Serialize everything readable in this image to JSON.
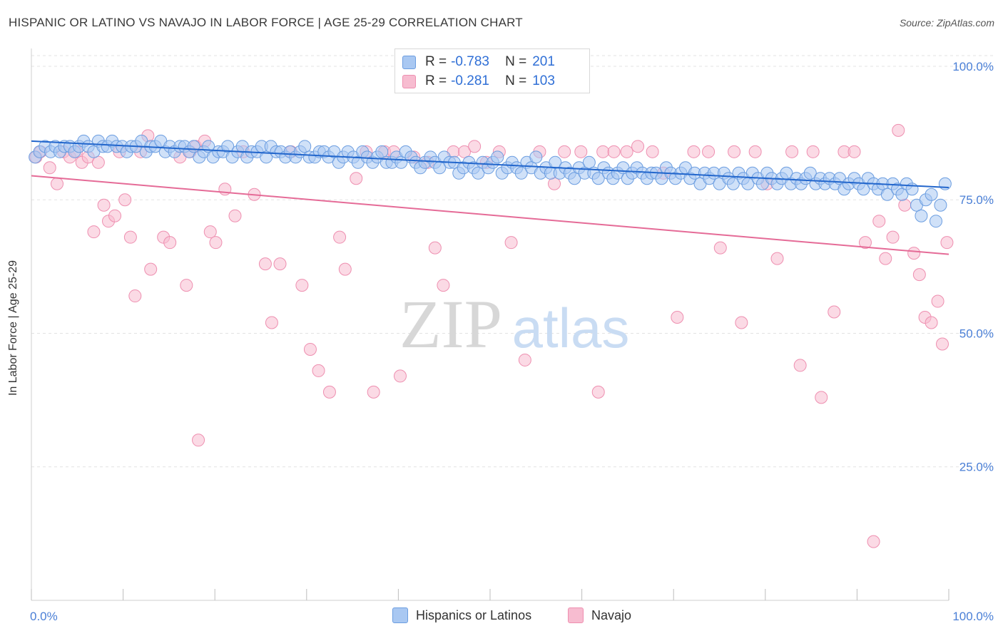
{
  "title": "HISPANIC OR LATINO VS NAVAJO IN LABOR FORCE | AGE 25-29 CORRELATION CHART",
  "source": "Source: ZipAtlas.com",
  "watermark": {
    "zip": "ZIP",
    "atlas": "atlas"
  },
  "legend": {
    "rows": [
      {
        "r_label": "R =",
        "r_value": "-0.783",
        "n_label": "N =",
        "n_value": "201"
      },
      {
        "r_label": "R =",
        "r_value": "-0.281",
        "n_label": "N =",
        "n_value": "103"
      }
    ]
  },
  "chart_data": {
    "type": "scatter",
    "title": "HISPANIC OR LATINO VS NAVAJO IN LABOR FORCE | AGE 25-29 CORRELATION CHART",
    "xlabel": "",
    "ylabel": "In Labor Force | Age 25-29",
    "xlim": [
      0,
      100
    ],
    "ylim": [
      0,
      102
    ],
    "x_tick_labels": [
      "0.0%",
      "100.0%"
    ],
    "y_ticks": [
      25,
      50,
      75,
      100
    ],
    "y_tick_labels": [
      "25.0%",
      "50.0%",
      "75.0%",
      "100.0%"
    ],
    "grid": true,
    "colors": {
      "blue_fill": "#a9c8f2",
      "blue_stroke": "#6b9de0",
      "blue_line": "#2266cc",
      "pink_fill": "#f7bcd0",
      "pink_stroke": "#ee8fb0",
      "pink_line": "#e56b97",
      "tick_text": "#4a7fd6"
    },
    "series": [
      {
        "name": "Hispanics or Latinos",
        "r": -0.783,
        "n": 201,
        "trend": {
          "x": [
            0,
            100
          ],
          "y": [
            86.0,
            77.3
          ]
        },
        "points": [
          [
            0.4,
            83
          ],
          [
            0.9,
            84
          ],
          [
            1.5,
            85
          ],
          [
            2.1,
            84
          ],
          [
            2.6,
            85
          ],
          [
            3.1,
            84
          ],
          [
            3.6,
            85
          ],
          [
            4.2,
            85
          ],
          [
            4.7,
            84
          ],
          [
            5.2,
            85
          ],
          [
            5.7,
            86
          ],
          [
            6.2,
            85
          ],
          [
            6.8,
            84
          ],
          [
            7.3,
            86
          ],
          [
            7.8,
            85
          ],
          [
            8.3,
            85
          ],
          [
            8.8,
            86
          ],
          [
            9.3,
            85
          ],
          [
            9.9,
            85
          ],
          [
            10.4,
            84
          ],
          [
            10.9,
            85
          ],
          [
            11.4,
            85
          ],
          [
            12,
            86
          ],
          [
            12.5,
            84
          ],
          [
            13,
            85
          ],
          [
            13.5,
            85
          ],
          [
            14.1,
            86
          ],
          [
            14.6,
            84
          ],
          [
            15.1,
            85
          ],
          [
            15.6,
            84
          ],
          [
            16.2,
            85
          ],
          [
            16.7,
            85
          ],
          [
            17.2,
            84
          ],
          [
            17.7,
            85
          ],
          [
            18.3,
            83
          ],
          [
            18.8,
            84
          ],
          [
            19.3,
            85
          ],
          [
            19.8,
            83
          ],
          [
            20.4,
            84
          ],
          [
            20.9,
            84
          ],
          [
            21.4,
            85
          ],
          [
            21.9,
            83
          ],
          [
            22.5,
            84
          ],
          [
            23,
            85
          ],
          [
            23.5,
            83
          ],
          [
            24,
            84
          ],
          [
            24.6,
            84
          ],
          [
            25.1,
            85
          ],
          [
            25.6,
            83
          ],
          [
            26.1,
            85
          ],
          [
            26.7,
            84
          ],
          [
            27.2,
            84
          ],
          [
            27.7,
            83
          ],
          [
            28.2,
            84
          ],
          [
            28.8,
            83
          ],
          [
            29.3,
            84
          ],
          [
            29.8,
            85
          ],
          [
            30.3,
            83
          ],
          [
            30.9,
            83
          ],
          [
            31.4,
            84
          ],
          [
            31.9,
            84
          ],
          [
            32.4,
            83
          ],
          [
            33,
            84
          ],
          [
            33.5,
            82
          ],
          [
            34,
            83
          ],
          [
            34.5,
            84
          ],
          [
            35.1,
            83
          ],
          [
            35.6,
            82
          ],
          [
            36.1,
            84
          ],
          [
            36.6,
            83
          ],
          [
            37.2,
            82
          ],
          [
            37.7,
            83
          ],
          [
            38.2,
            84
          ],
          [
            38.7,
            82
          ],
          [
            39.3,
            82
          ],
          [
            39.8,
            83
          ],
          [
            40.3,
            82
          ],
          [
            40.8,
            84
          ],
          [
            41.4,
            83
          ],
          [
            41.9,
            82
          ],
          [
            42.4,
            81
          ],
          [
            42.9,
            82
          ],
          [
            43.5,
            83
          ],
          [
            44,
            82
          ],
          [
            44.5,
            81
          ],
          [
            45,
            83
          ],
          [
            45.6,
            82
          ],
          [
            46.1,
            82
          ],
          [
            46.6,
            80
          ],
          [
            47.1,
            81
          ],
          [
            47.7,
            82
          ],
          [
            48.2,
            81
          ],
          [
            48.7,
            80
          ],
          [
            49.2,
            82
          ],
          [
            49.8,
            81
          ],
          [
            50.3,
            82
          ],
          [
            50.8,
            83
          ],
          [
            51.3,
            80
          ],
          [
            51.9,
            81
          ],
          [
            52.4,
            82
          ],
          [
            52.9,
            81
          ],
          [
            53.4,
            80
          ],
          [
            54,
            82
          ],
          [
            54.5,
            81
          ],
          [
            55,
            83
          ],
          [
            55.5,
            80
          ],
          [
            56.1,
            81
          ],
          [
            56.6,
            80
          ],
          [
            57.1,
            82
          ],
          [
            57.6,
            80
          ],
          [
            58.2,
            81
          ],
          [
            58.7,
            80
          ],
          [
            59.2,
            79
          ],
          [
            59.7,
            81
          ],
          [
            60.3,
            80
          ],
          [
            60.8,
            82
          ],
          [
            61.3,
            80
          ],
          [
            61.8,
            79
          ],
          [
            62.4,
            81
          ],
          [
            62.9,
            80
          ],
          [
            63.4,
            79
          ],
          [
            63.9,
            80
          ],
          [
            64.5,
            81
          ],
          [
            65,
            79
          ],
          [
            65.5,
            80
          ],
          [
            66,
            81
          ],
          [
            66.6,
            80
          ],
          [
            67.1,
            79
          ],
          [
            67.6,
            80
          ],
          [
            68.1,
            80
          ],
          [
            68.7,
            79
          ],
          [
            69.2,
            81
          ],
          [
            69.7,
            80
          ],
          [
            70.2,
            79
          ],
          [
            70.8,
            80
          ],
          [
            71.3,
            81
          ],
          [
            71.8,
            79
          ],
          [
            72.3,
            80
          ],
          [
            72.9,
            78
          ],
          [
            73.4,
            80
          ],
          [
            73.9,
            79
          ],
          [
            74.4,
            80
          ],
          [
            75,
            78
          ],
          [
            75.5,
            80
          ],
          [
            76,
            79
          ],
          [
            76.5,
            78
          ],
          [
            77.1,
            80
          ],
          [
            77.6,
            79
          ],
          [
            78.1,
            78
          ],
          [
            78.6,
            80
          ],
          [
            79.2,
            79
          ],
          [
            79.7,
            78
          ],
          [
            80.2,
            80
          ],
          [
            80.7,
            79
          ],
          [
            81.3,
            78
          ],
          [
            81.8,
            79
          ],
          [
            82.3,
            80
          ],
          [
            82.8,
            78
          ],
          [
            83.4,
            79
          ],
          [
            83.9,
            78
          ],
          [
            84.4,
            79
          ],
          [
            84.9,
            80
          ],
          [
            85.5,
            78
          ],
          [
            86,
            79
          ],
          [
            86.5,
            78
          ],
          [
            87,
            79
          ],
          [
            87.6,
            78
          ],
          [
            88.1,
            79
          ],
          [
            88.6,
            77
          ],
          [
            89.1,
            78
          ],
          [
            89.7,
            79
          ],
          [
            90.2,
            78
          ],
          [
            90.7,
            77
          ],
          [
            91.2,
            79
          ],
          [
            91.8,
            78
          ],
          [
            92.3,
            77
          ],
          [
            92.8,
            78
          ],
          [
            93.3,
            76
          ],
          [
            93.9,
            78
          ],
          [
            94.4,
            77
          ],
          [
            94.9,
            76
          ],
          [
            95.4,
            78
          ],
          [
            96,
            77
          ],
          [
            96.5,
            74
          ],
          [
            97,
            72
          ],
          [
            97.5,
            75
          ],
          [
            98.1,
            76
          ],
          [
            98.6,
            71
          ],
          [
            99.1,
            74
          ],
          [
            99.6,
            78
          ]
        ]
      },
      {
        "name": "Navajo",
        "r": -0.281,
        "n": 103,
        "trend": {
          "x": [
            0,
            100
          ],
          "y": [
            79.5,
            64.8
          ]
        },
        "points": [
          [
            0.5,
            83
          ],
          [
            1,
            84
          ],
          [
            2,
            81
          ],
          [
            2.8,
            78
          ],
          [
            3.5,
            84
          ],
          [
            4.2,
            83
          ],
          [
            4.9,
            84
          ],
          [
            5.5,
            82
          ],
          [
            6.2,
            83
          ],
          [
            6.8,
            69
          ],
          [
            7.3,
            82
          ],
          [
            7.9,
            74
          ],
          [
            8.4,
            71
          ],
          [
            9.1,
            72
          ],
          [
            9.6,
            84
          ],
          [
            10.2,
            75
          ],
          [
            10.8,
            68
          ],
          [
            11.3,
            57
          ],
          [
            11.9,
            84
          ],
          [
            12.7,
            87
          ],
          [
            13,
            62
          ],
          [
            14.4,
            68
          ],
          [
            15.1,
            67
          ],
          [
            16.2,
            83
          ],
          [
            16.9,
            59
          ],
          [
            17.3,
            84
          ],
          [
            17.9,
            85
          ],
          [
            18.2,
            30
          ],
          [
            18.9,
            86
          ],
          [
            19.5,
            69
          ],
          [
            20.1,
            67
          ],
          [
            21.1,
            77
          ],
          [
            22.2,
            72
          ],
          [
            23.1,
            84
          ],
          [
            24.3,
            76
          ],
          [
            25.5,
            63
          ],
          [
            26.2,
            52
          ],
          [
            27.1,
            63
          ],
          [
            28.3,
            84
          ],
          [
            29.5,
            59
          ],
          [
            30.4,
            47
          ],
          [
            31.3,
            43
          ],
          [
            32.5,
            39
          ],
          [
            33.6,
            68
          ],
          [
            34.2,
            62
          ],
          [
            35.4,
            79
          ],
          [
            36.5,
            84
          ],
          [
            37.3,
            39
          ],
          [
            38.5,
            84
          ],
          [
            39.5,
            84
          ],
          [
            40.2,
            42
          ],
          [
            41.7,
            83
          ],
          [
            43.2,
            82
          ],
          [
            44,
            66
          ],
          [
            44.9,
            59
          ],
          [
            46,
            84
          ],
          [
            47.2,
            84
          ],
          [
            48.3,
            85
          ],
          [
            49.6,
            82
          ],
          [
            51,
            84
          ],
          [
            52.3,
            67
          ],
          [
            53.8,
            45
          ],
          [
            55.4,
            84
          ],
          [
            57,
            78
          ],
          [
            58.1,
            84
          ],
          [
            59.9,
            84
          ],
          [
            61.8,
            39
          ],
          [
            62.3,
            84
          ],
          [
            63.5,
            84
          ],
          [
            64.9,
            84
          ],
          [
            66.1,
            85
          ],
          [
            67.7,
            84
          ],
          [
            68.9,
            80
          ],
          [
            70.4,
            53
          ],
          [
            72.2,
            84
          ],
          [
            73.8,
            84
          ],
          [
            75.1,
            66
          ],
          [
            76.6,
            84
          ],
          [
            77.4,
            52
          ],
          [
            78.9,
            84
          ],
          [
            80.2,
            78
          ],
          [
            81.3,
            64
          ],
          [
            82.9,
            84
          ],
          [
            83.8,
            44
          ],
          [
            85.2,
            84
          ],
          [
            86.1,
            38
          ],
          [
            87.5,
            54
          ],
          [
            88.6,
            84
          ],
          [
            89.7,
            84
          ],
          [
            90.9,
            67
          ],
          [
            91.8,
            11
          ],
          [
            92.4,
            71
          ],
          [
            93.1,
            64
          ],
          [
            93.9,
            68
          ],
          [
            94.5,
            88
          ],
          [
            95.2,
            74
          ],
          [
            96.2,
            65
          ],
          [
            96.8,
            61
          ],
          [
            97.4,
            53
          ],
          [
            98.1,
            52
          ],
          [
            98.8,
            56
          ],
          [
            99.3,
            48
          ],
          [
            99.8,
            67
          ]
        ]
      }
    ]
  },
  "bottom_legend": [
    {
      "label": "Hispanics or Latinos"
    },
    {
      "label": "Navajo"
    }
  ]
}
